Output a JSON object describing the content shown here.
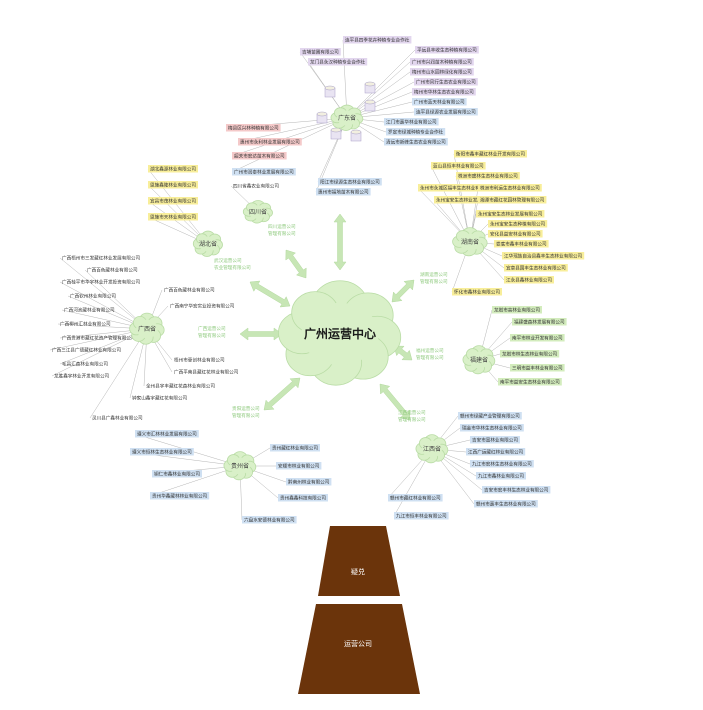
{
  "center": {
    "label": "广州运营中心"
  },
  "base": {
    "top_label": "疑兑",
    "bottom_label": "运营公司"
  },
  "colors": {
    "cloud": "#d9f0c8",
    "cloud_stroke": "#b9dca5",
    "arrow": "#c7e6b5",
    "line": "#b5b5b5",
    "trunk": "#6b340b",
    "blue": "#cfe0f2",
    "purple": "#e2d6ee",
    "yellow": "#f8ee9a",
    "red": "#f4c9c9",
    "green": "#d3ecbd"
  },
  "hubs": [
    {
      "id": "guangdong",
      "label": "广东省",
      "arrow_caption": "",
      "children": [
        {
          "text": "连平县四季花卉种植专业合作社",
          "color": "purple"
        },
        {
          "text": "吉埔苗圃有限公司",
          "color": "purple"
        },
        {
          "text": "龙门县永汉种植专业合作社",
          "color": "purple"
        },
        {
          "text": "平远县丰收生态种植有限公司",
          "color": "purple"
        },
        {
          "text": "广州市兴润苗木种植有限公司",
          "color": "purple"
        },
        {
          "text": "梅州市山水园林绿化有限公司",
          "color": "purple"
        },
        {
          "text": "广州市风行生态农业有限公司",
          "color": "purple"
        },
        {
          "text": "梅州市华林生态农业有限公司",
          "color": "purple"
        },
        {
          "text": "广州市蓝天林业有限公司",
          "color": "blue"
        },
        {
          "text": "连平县绿源农业发展有限公司",
          "color": "blue"
        },
        {
          "text": "江门市嘉华林业有限公司",
          "color": "blue"
        },
        {
          "text": "罗定市绿城种植专业合作社",
          "color": "blue"
        },
        {
          "text": "清远市新峰生态农业有限公司",
          "color": "blue"
        },
        {
          "text": "梅县区兴林种植有限公司",
          "color": "red"
        },
        {
          "text": "惠州市永利林业发展有限公司",
          "color": "red"
        },
        {
          "text": "韶关市宏达苗木有限公司",
          "color": "red"
        },
        {
          "text": "广州市润泰林业发展有限公司",
          "color": "blue"
        },
        {
          "text": "阳江市绿源生态林业有限公司",
          "color": "blue"
        },
        {
          "text": "惠州市福地苗木有限公司",
          "color": "blue"
        }
      ]
    },
    {
      "id": "sichuan",
      "label": "四川省",
      "arrow_caption": "四川运营公司 管理有限公司",
      "children": [
        {
          "text": "四川省鑫农业有限公司",
          "color": "none"
        }
      ]
    },
    {
      "id": "hubei",
      "label": "湖北省",
      "arrow_caption": "武汉运营公司 农业管理有限公司",
      "children": [
        {
          "text": "湖北鑫源林业有限公司",
          "color": "yellow"
        },
        {
          "text": "恩施鑫隆林业有限公司",
          "color": "yellow"
        },
        {
          "text": "宜昌市茂林业有限公司",
          "color": "yellow"
        },
        {
          "text": "恩施市天林业有限公司",
          "color": "yellow"
        }
      ]
    },
    {
      "id": "hunan",
      "label": "湖南省",
      "arrow_caption": "湖南运营公司 管理有限公司",
      "children": [
        {
          "text": "衡阳市鑫丰藏红林业开发有限公司",
          "color": "yellow"
        },
        {
          "text": "蓝山县恒丰林业有限公司",
          "color": "yellow"
        },
        {
          "text": "株洲市盛林生态林业有限公司",
          "color": "yellow"
        },
        {
          "text": "永州市永城区福丰生态林业有限公司",
          "color": "yellow"
        },
        {
          "text": "永州宝安生态林业发展有限公司",
          "color": "yellow"
        },
        {
          "text": "株洲市利运生态林业有限公司",
          "color": "yellow"
        },
        {
          "text": "湘潭市藏红花园林管理有限公司",
          "color": "yellow"
        },
        {
          "text": "永州宝安生态林业发展有限公司",
          "color": "yellow"
        },
        {
          "text": "永州宝安生态种植有限公司",
          "color": "yellow"
        },
        {
          "text": "安化县益安林业有限公司",
          "color": "yellow"
        },
        {
          "text": "娄底市鑫丰林业有限公司",
          "color": "yellow"
        },
        {
          "text": "江华瑶族自治县鑫丰生态林业有限公司",
          "color": "yellow"
        },
        {
          "text": "宜章县国丰生态林业有限公司",
          "color": "yellow"
        },
        {
          "text": "江永县鑫林业有限公司",
          "color": "yellow"
        },
        {
          "text": "怀化市鑫林业有限公司",
          "color": "yellow"
        }
      ]
    },
    {
      "id": "fujian",
      "label": "福建省",
      "arrow_caption": "福州运营公司 管理有限公司",
      "children": [
        {
          "text": "龙岩市高林业有限公司",
          "color": "green"
        },
        {
          "text": "福建盛森林发展有限公司",
          "color": "green"
        },
        {
          "text": "南平市林业开发有限公司",
          "color": "green"
        },
        {
          "text": "龙岩市林生态林业有限公司",
          "color": "green"
        },
        {
          "text": "三明市益丰林业有限公司",
          "color": "green"
        },
        {
          "text": "南平市益安生态林业有限公司",
          "color": "green"
        }
      ]
    },
    {
      "id": "jiangxi",
      "label": "江西省",
      "arrow_caption": "江西运营公司 管理有限公司",
      "children": [
        {
          "text": "赣州市绿藏产业管理有限公司",
          "color": "blue"
        },
        {
          "text": "瑞金市华林生态林业有限公司",
          "color": "blue"
        },
        {
          "text": "吉安市富林业有限公司",
          "color": "blue"
        },
        {
          "text": "江西广运藏红林业有限公司",
          "color": "blue"
        },
        {
          "text": "九江市宏林生态林业有限公司",
          "color": "blue"
        },
        {
          "text": "九江市鑫林业有限公司",
          "color": "blue"
        },
        {
          "text": "吉安市宏丰林生态林业有限公司",
          "color": "blue"
        },
        {
          "text": "赣州市嘉丰生态林业有限公司",
          "color": "blue"
        },
        {
          "text": "赣州市藏红林业有限公司",
          "color": "blue"
        },
        {
          "text": "九江市恒丰林业有限公司",
          "color": "blue"
        }
      ]
    },
    {
      "id": "guizhou",
      "label": "贵州省",
      "arrow_caption": "贵阳运营公司 管理有限公司",
      "children": [
        {
          "text": "遵义市汇林林业发展有限公司",
          "color": "blue"
        },
        {
          "text": "遵义市恒林生态林业有限公司",
          "color": "blue"
        },
        {
          "text": "铜仁市鑫林业有限公司",
          "color": "blue"
        },
        {
          "text": "贵州华鑫藏林林业有限公司",
          "color": "blue"
        },
        {
          "text": "贵州藏红林业有限公司",
          "color": "blue"
        },
        {
          "text": "安顺市林业有限公司",
          "color": "blue"
        },
        {
          "text": "黔南州林业有限公司",
          "color": "blue"
        },
        {
          "text": "贵州鑫鑫科技有限公司",
          "color": "blue"
        },
        {
          "text": "六盘水安德林业有限公司",
          "color": "blue"
        }
      ]
    },
    {
      "id": "guangxi",
      "label": "广西省",
      "arrow_caption": "广西运营公司 管理有限公司",
      "children": [
        {
          "text": "广西梧州市三发藏红林业发展有限公司",
          "color": "none"
        },
        {
          "text": "广西百色藏林业有限公司",
          "color": "none"
        },
        {
          "text": "广西桂平市华宇林业开发投资有限公司",
          "color": "none"
        },
        {
          "text": "广西钦州林业有限公司",
          "color": "none"
        },
        {
          "text": "广西河池藏林业有限公司",
          "color": "none"
        },
        {
          "text": "广西柳州汇林业有限公司",
          "color": "none"
        },
        {
          "text": "广西贵港市藏红花资产管理有限公司",
          "color": "none"
        },
        {
          "text": "广西三江县广德藏红林业有限公司",
          "color": "none"
        },
        {
          "text": "毛昌汇森林业有限公司",
          "color": "none"
        },
        {
          "text": "龙胜鑫宇林业开发有限公司",
          "color": "none"
        },
        {
          "text": "广西百色藏林业有限公司",
          "color": "none"
        },
        {
          "text": "广西南宁华宏实业投资有限公司",
          "color": "none"
        },
        {
          "text": "梧州市壹创林业有限公司",
          "color": "none"
        },
        {
          "text": "广西平南县藏红花林业有限公司",
          "color": "none"
        },
        {
          "text": "全州县宇丰藏红花森林业有限公司",
          "color": "none"
        },
        {
          "text": "钟家山鑫宇藏红花有限公司",
          "color": "none"
        },
        {
          "text": "灵川县广鑫林业有限公司",
          "color": "none"
        }
      ]
    }
  ]
}
